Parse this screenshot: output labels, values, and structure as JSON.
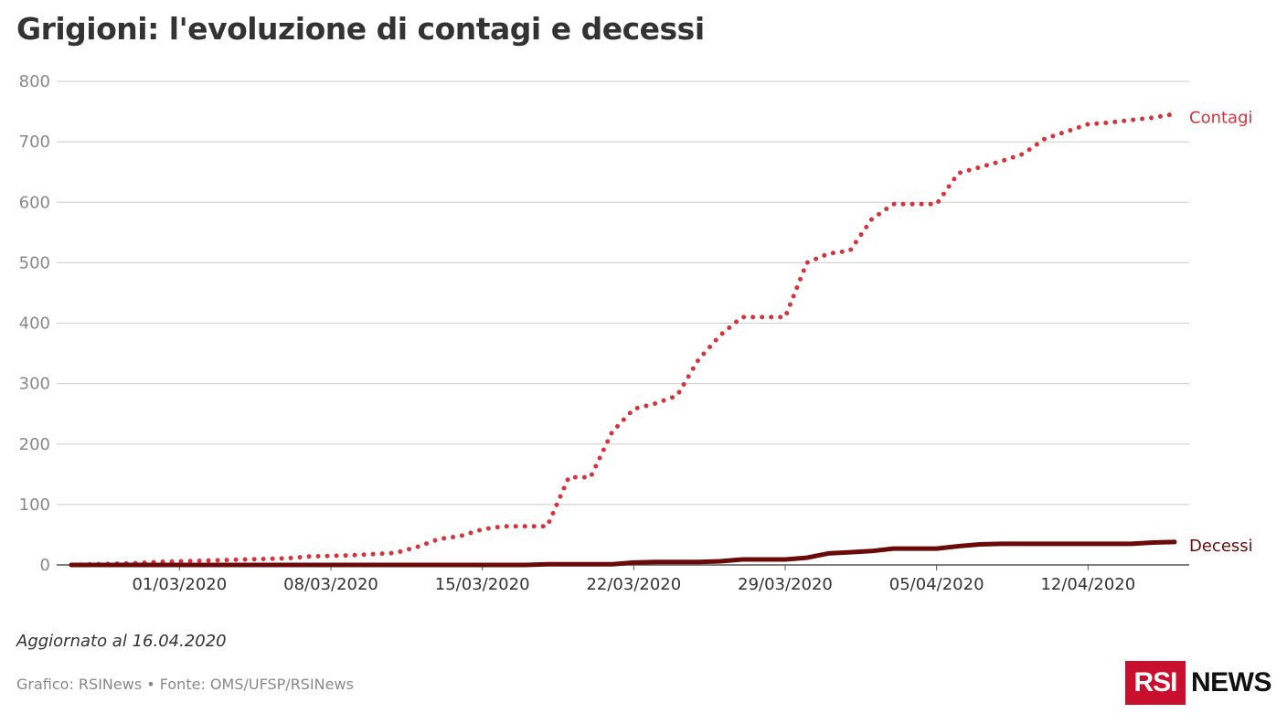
{
  "title": "Grigioni: l'evoluzione di contagi e decessi",
  "updated": "Aggiornato al 16.04.2020",
  "source": "Grafico: RSINews • Fonte: OMS/UFSP/RSINews",
  "logo": {
    "box": "RSI",
    "text": "NEWS"
  },
  "chart_data": {
    "type": "line",
    "ylim": [
      0,
      800
    ],
    "yticks": [
      0,
      100,
      200,
      300,
      400,
      500,
      600,
      700,
      800
    ],
    "x_start": "2020-02-25",
    "x_end": "2020-04-16",
    "xtick_labels": [
      "01/03/2020",
      "08/03/2020",
      "15/03/2020",
      "22/03/2020",
      "29/03/2020",
      "05/04/2020",
      "12/04/2020"
    ],
    "xtick_dates": [
      "2020-03-01",
      "2020-03-08",
      "2020-03-15",
      "2020-03-22",
      "2020-03-29",
      "2020-04-05",
      "2020-04-12"
    ],
    "grid": true,
    "series": [
      {
        "name": "Contagi",
        "color": "#d6323a",
        "style": "dotted",
        "points": [
          [
            "2020-02-25",
            0
          ],
          [
            "2020-02-26",
            1
          ],
          [
            "2020-02-27",
            2
          ],
          [
            "2020-02-28",
            3
          ],
          [
            "2020-02-29",
            5
          ],
          [
            "2020-03-01",
            6
          ],
          [
            "2020-03-02",
            7
          ],
          [
            "2020-03-03",
            8
          ],
          [
            "2020-03-04",
            9
          ],
          [
            "2020-03-05",
            10
          ],
          [
            "2020-03-06",
            11
          ],
          [
            "2020-03-07",
            14
          ],
          [
            "2020-03-08",
            15
          ],
          [
            "2020-03-09",
            16
          ],
          [
            "2020-03-10",
            18
          ],
          [
            "2020-03-11",
            20
          ],
          [
            "2020-03-12",
            30
          ],
          [
            "2020-03-13",
            43
          ],
          [
            "2020-03-14",
            48
          ],
          [
            "2020-03-15",
            59
          ],
          [
            "2020-03-16",
            64
          ],
          [
            "2020-03-17",
            64
          ],
          [
            "2020-03-18",
            64
          ],
          [
            "2020-03-19",
            145
          ],
          [
            "2020-03-20",
            145
          ],
          [
            "2020-03-21",
            220
          ],
          [
            "2020-03-22",
            258
          ],
          [
            "2020-03-23",
            267
          ],
          [
            "2020-03-24",
            280
          ],
          [
            "2020-03-25",
            340
          ],
          [
            "2020-03-26",
            380
          ],
          [
            "2020-03-27",
            410
          ],
          [
            "2020-03-28",
            410
          ],
          [
            "2020-03-29",
            410
          ],
          [
            "2020-03-30",
            500
          ],
          [
            "2020-03-31",
            515
          ],
          [
            "2020-04-01",
            520
          ],
          [
            "2020-04-02",
            572
          ],
          [
            "2020-04-03",
            597
          ],
          [
            "2020-04-04",
            597
          ],
          [
            "2020-04-05",
            597
          ],
          [
            "2020-04-06",
            648
          ],
          [
            "2020-04-07",
            658
          ],
          [
            "2020-04-08",
            668
          ],
          [
            "2020-04-09",
            680
          ],
          [
            "2020-04-10",
            705
          ],
          [
            "2020-04-11",
            717
          ],
          [
            "2020-04-12",
            729
          ],
          [
            "2020-04-13",
            732
          ],
          [
            "2020-04-14",
            736
          ],
          [
            "2020-04-15",
            740
          ],
          [
            "2020-04-16",
            746
          ]
        ]
      },
      {
        "name": "Decessi",
        "color": "#6b0a0a",
        "style": "solid",
        "points": [
          [
            "2020-02-25",
            0
          ],
          [
            "2020-03-17",
            0
          ],
          [
            "2020-03-18",
            1
          ],
          [
            "2020-03-21",
            1
          ],
          [
            "2020-03-22",
            4
          ],
          [
            "2020-03-23",
            5
          ],
          [
            "2020-03-24",
            5
          ],
          [
            "2020-03-25",
            5
          ],
          [
            "2020-03-26",
            6
          ],
          [
            "2020-03-27",
            9
          ],
          [
            "2020-03-28",
            9
          ],
          [
            "2020-03-29",
            9
          ],
          [
            "2020-03-30",
            12
          ],
          [
            "2020-03-31",
            19
          ],
          [
            "2020-04-01",
            21
          ],
          [
            "2020-04-02",
            23
          ],
          [
            "2020-04-03",
            27
          ],
          [
            "2020-04-04",
            27
          ],
          [
            "2020-04-05",
            27
          ],
          [
            "2020-04-06",
            31
          ],
          [
            "2020-04-07",
            34
          ],
          [
            "2020-04-08",
            35
          ],
          [
            "2020-04-09",
            35
          ],
          [
            "2020-04-10",
            35
          ],
          [
            "2020-04-11",
            35
          ],
          [
            "2020-04-12",
            35
          ],
          [
            "2020-04-13",
            35
          ],
          [
            "2020-04-14",
            35
          ],
          [
            "2020-04-15",
            37
          ],
          [
            "2020-04-16",
            38
          ]
        ]
      }
    ]
  }
}
